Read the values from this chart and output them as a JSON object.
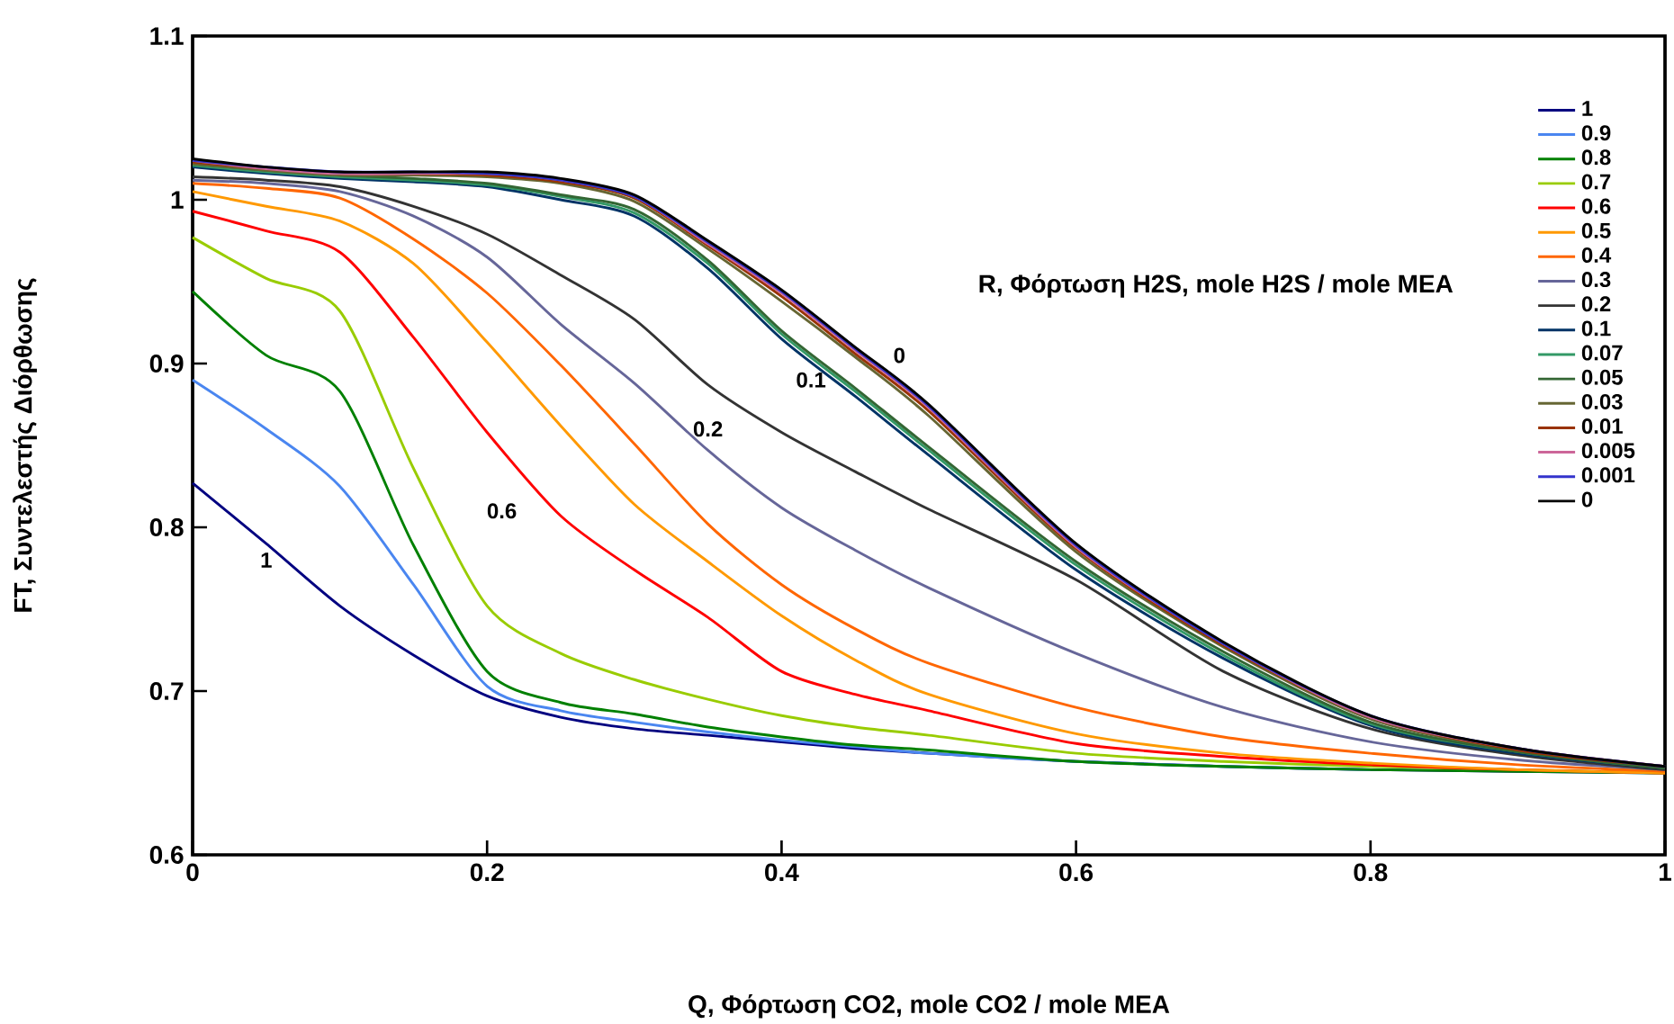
{
  "chart_data": {
    "type": "line",
    "xlabel": "Q, Φόρτωση CO2, mole CO2 / mole MEA",
    "ylabel": "FT, Συντελεστής Διόρθωσης",
    "xlim": [
      0,
      1
    ],
    "ylim": [
      0.6,
      1.1
    ],
    "xticks": [
      0,
      0.2,
      0.4,
      0.6,
      0.8,
      1
    ],
    "yticks": [
      0.6,
      0.7,
      0.8,
      0.9,
      1,
      1.1
    ],
    "legend": "top right",
    "x": [
      0,
      0.05,
      0.1,
      0.15,
      0.2,
      0.25,
      0.3,
      0.35,
      0.4,
      0.45,
      0.5,
      0.6,
      0.7,
      0.8,
      0.9,
      1
    ],
    "series": [
      {
        "name": "1",
        "color": "#000080",
        "values": [
          0.827,
          0.79,
          0.752,
          0.722,
          0.697,
          0.684,
          0.677,
          0.673,
          0.669,
          0.665,
          0.662,
          0.657,
          0.654,
          0.652,
          0.651,
          0.65
        ]
      },
      {
        "name": "0.9",
        "color": "#4a86f0",
        "values": [
          0.89,
          0.86,
          0.825,
          0.765,
          0.703,
          0.688,
          0.681,
          0.675,
          0.67,
          0.666,
          0.662,
          0.657,
          0.654,
          0.652,
          null,
          null
        ]
      },
      {
        "name": "0.8",
        "color": "#008000",
        "values": [
          0.944,
          0.905,
          0.883,
          0.789,
          0.712,
          0.693,
          0.686,
          0.678,
          0.672,
          0.667,
          0.664,
          0.657,
          0.654,
          0.652,
          0.651,
          0.65
        ]
      },
      {
        "name": "0.7",
        "color": "#99cc00",
        "values": [
          0.977,
          0.952,
          0.932,
          0.836,
          0.752,
          0.723,
          0.707,
          0.695,
          0.685,
          0.678,
          0.673,
          0.662,
          0.657,
          0.654,
          0.652,
          0.65
        ]
      },
      {
        "name": "0.6",
        "color": "#ff0000",
        "values": [
          0.993,
          0.981,
          0.968,
          0.916,
          0.858,
          0.807,
          0.774,
          0.745,
          0.712,
          0.698,
          0.688,
          0.668,
          0.66,
          0.655,
          0.652,
          0.65
        ]
      },
      {
        "name": "0.5",
        "color": "#ff9900",
        "values": [
          1.005,
          0.996,
          0.987,
          0.961,
          0.913,
          0.862,
          0.814,
          0.779,
          0.746,
          0.719,
          0.698,
          0.674,
          0.662,
          0.656,
          0.652,
          0.65
        ]
      },
      {
        "name": "0.4",
        "color": "#ff6600",
        "values": [
          1.01,
          1.007,
          1.001,
          0.976,
          0.943,
          0.899,
          0.851,
          0.802,
          0.765,
          0.738,
          0.717,
          0.69,
          0.672,
          0.662,
          0.655,
          0.651
        ]
      },
      {
        "name": "0.3",
        "color": "#666699",
        "values": [
          1.012,
          1.01,
          1.005,
          0.99,
          0.965,
          0.924,
          0.888,
          0.847,
          0.812,
          0.786,
          0.763,
          0.723,
          0.69,
          0.669,
          0.658,
          0.652
        ]
      },
      {
        "name": "0.2",
        "color": "#333333",
        "values": [
          1.014,
          1.012,
          1.008,
          0.996,
          0.979,
          0.954,
          0.927,
          0.887,
          0.858,
          0.834,
          0.811,
          0.768,
          0.712,
          0.677,
          0.661,
          0.652
        ]
      },
      {
        "name": "0.1",
        "color": "#003366",
        "values": [
          1.02,
          1.016,
          1.013,
          1.011,
          1.008,
          1.0,
          0.99,
          0.958,
          0.915,
          0.88,
          0.844,
          0.774,
          0.72,
          0.679,
          0.662,
          0.653
        ]
      },
      {
        "name": "0.07",
        "color": "#339966",
        "values": [
          1.021,
          1.017,
          1.014,
          1.012,
          1.009,
          1.002,
          0.992,
          0.961,
          0.918,
          0.883,
          0.847,
          0.777,
          0.722,
          0.68,
          0.663,
          0.653
        ]
      },
      {
        "name": "0.05",
        "color": "#336633",
        "values": [
          1.022,
          1.018,
          1.015,
          1.013,
          1.01,
          1.003,
          0.994,
          0.963,
          0.92,
          0.885,
          0.849,
          0.779,
          0.724,
          0.681,
          0.663,
          0.653
        ]
      },
      {
        "name": "0.03",
        "color": "#666633",
        "values": [
          1.022,
          1.018,
          1.015,
          1.015,
          1.014,
          1.01,
          0.999,
          0.97,
          0.938,
          0.904,
          0.868,
          0.785,
          0.727,
          0.683,
          0.664,
          0.654
        ]
      },
      {
        "name": "0.01",
        "color": "#993300",
        "values": [
          1.023,
          1.019,
          1.016,
          1.016,
          1.015,
          1.011,
          1.001,
          0.972,
          0.941,
          0.906,
          0.871,
          0.787,
          0.728,
          0.684,
          0.664,
          0.654
        ]
      },
      {
        "name": "0.005",
        "color": "#cc6699",
        "values": [
          1.024,
          1.019,
          1.016,
          1.016,
          1.016,
          1.012,
          1.002,
          0.973,
          0.943,
          0.908,
          0.873,
          0.788,
          0.729,
          0.684,
          0.665,
          0.654
        ]
      },
      {
        "name": "0.001",
        "color": "#3333cc",
        "values": [
          1.024,
          1.02,
          1.017,
          1.017,
          1.016,
          1.012,
          1.002,
          0.974,
          0.944,
          0.909,
          0.874,
          0.789,
          0.729,
          0.685,
          0.665,
          0.654
        ]
      },
      {
        "name": "0",
        "color": "#000000",
        "values": [
          1.025,
          1.02,
          1.017,
          1.017,
          1.017,
          1.013,
          1.003,
          0.975,
          0.945,
          0.91,
          0.875,
          0.79,
          0.73,
          0.685,
          0.665,
          0.654
        ]
      }
    ],
    "annotations": [
      "R, Φόρτωση H2S, mole H2S / mole MEA",
      "1",
      "0.6",
      "0.2",
      "0.1",
      "0"
    ]
  }
}
